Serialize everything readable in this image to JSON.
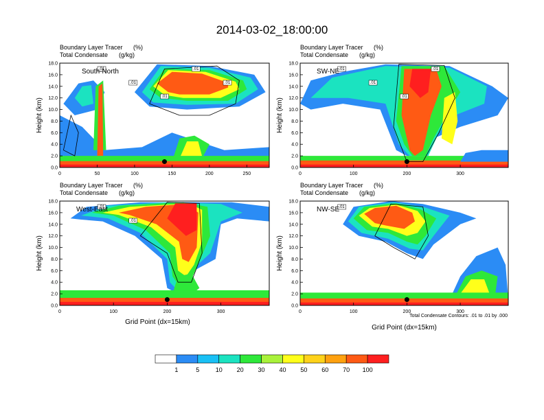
{
  "title": "2014-03-02_18:00:00",
  "colors": {
    "levels": [
      "#ffffff",
      "#2b8cf5",
      "#19c0f5",
      "#1be3c0",
      "#2ee83a",
      "#a9f23a",
      "#ffff1a",
      "#ffd21a",
      "#ffa10f",
      "#ff5a14",
      "#ff1f1f"
    ],
    "contour": "#000000",
    "marker": "#000000"
  },
  "colorbar": {
    "labels": [
      "1",
      "5",
      "10",
      "20",
      "30",
      "40",
      "50",
      "60",
      "70",
      "100"
    ]
  },
  "footnote": "Total Condensate Contours: .01 to .01 by .000",
  "chart_data": [
    {
      "type": "heatmap",
      "subtitle_left_1": "Boundary Layer Tracer",
      "subtitle_unit_1": "(%)",
      "subtitle_left_2": "Total Condensate",
      "subtitle_unit_2": "(g/kg)",
      "panel_label": "South-North",
      "ylabel": "Height (km)",
      "xlabel": "",
      "xlim": [
        0,
        280
      ],
      "ylim": [
        0,
        18
      ],
      "xticks": [
        "0",
        "50",
        "100",
        "150",
        "200",
        "250"
      ],
      "yticks": [
        "0.0",
        "2.0",
        "4.0",
        "6.0",
        "8.0",
        "10.0",
        "12.0",
        "14.0",
        "16.0",
        "18.0"
      ],
      "contour_labels": [
        ".01",
        ".01",
        ".01",
        ".01",
        ".01"
      ],
      "marker": [
        140,
        1
      ]
    },
    {
      "type": "heatmap",
      "subtitle_left_1": "Boundary Layer Tracer",
      "subtitle_unit_1": "(%)",
      "subtitle_left_2": "Total Condensate",
      "subtitle_unit_2": "(g/kg)",
      "panel_label": "SW-NE",
      "ylabel": "Height (km)",
      "xlabel": "",
      "xlim": [
        0,
        390
      ],
      "ylim": [
        0,
        18
      ],
      "xticks": [
        "0",
        "100",
        "200",
        "300"
      ],
      "yticks": [
        "0.0",
        "2.0",
        "4.0",
        "6.0",
        "8.0",
        "10.0",
        "12.0",
        "14.0",
        "16.0",
        "18.0"
      ],
      "contour_labels": [
        ".01",
        ".01",
        ".01",
        ".01"
      ],
      "marker": [
        200,
        1
      ]
    },
    {
      "type": "heatmap",
      "subtitle_left_1": "Boundary Layer Tracer",
      "subtitle_unit_1": "(%)",
      "subtitle_left_2": "Total Condensate",
      "subtitle_unit_2": "(g/kg)",
      "panel_label": "West-East",
      "ylabel": "Height (km)",
      "xlabel": "Grid Point (dx=15km)",
      "xlim": [
        0,
        390
      ],
      "ylim": [
        0,
        18
      ],
      "xticks": [
        "0",
        "100",
        "200",
        "300"
      ],
      "yticks": [
        "0.0",
        "2.0",
        "4.0",
        "6.0",
        "8.0",
        "10.0",
        "12.0",
        "14.0",
        "16.0",
        "18.0"
      ],
      "contour_labels": [
        ".01",
        ".01"
      ],
      "marker": [
        200,
        1
      ]
    },
    {
      "type": "heatmap",
      "subtitle_left_1": "Boundary Layer Tracer",
      "subtitle_unit_1": "(%)",
      "subtitle_left_2": "Total Condensate",
      "subtitle_unit_2": "(g/kg)",
      "panel_label": "NW-SE",
      "ylabel": "Height (km)",
      "xlabel": "Grid Point (dx=15km)",
      "xlim": [
        0,
        390
      ],
      "ylim": [
        0,
        18
      ],
      "xticks": [
        "0",
        "100",
        "200",
        "300"
      ],
      "yticks": [
        "0.0",
        "2.0",
        "4.0",
        "6.0",
        "8.0",
        "10.0",
        "12.0",
        "14.0",
        "16.0",
        "18.0"
      ],
      "contour_labels": [
        ".01"
      ],
      "marker": [
        200,
        1
      ]
    }
  ]
}
